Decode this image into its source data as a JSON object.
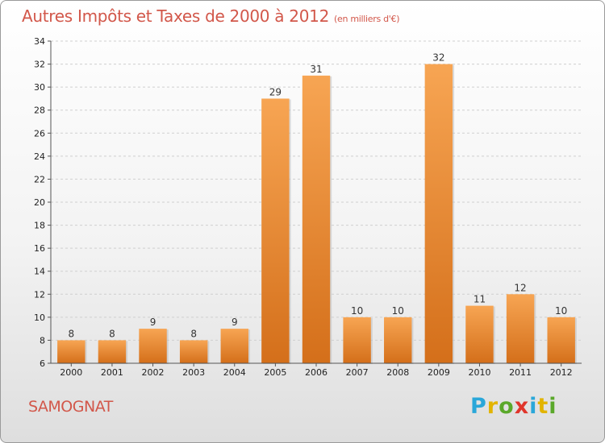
{
  "title": "Autres Impôts et Taxes de 2000 à 2012",
  "unit": "(en milliers d'€)",
  "commune": "SAMOGNAT",
  "logo": {
    "letters": [
      "P",
      "r",
      "o",
      "x",
      "i",
      "t",
      "i"
    ],
    "colors": [
      "#2aa7d9",
      "#e2b400",
      "#5aa82a",
      "#e0352b",
      "#2aa7d9",
      "#e2b400",
      "#5aa82a"
    ]
  },
  "chart_data": {
    "type": "bar",
    "title": "Autres Impôts et Taxes de 2000 à 2012",
    "subtitle": "(en milliers d'€)",
    "categories": [
      "2000",
      "2001",
      "2002",
      "2003",
      "2004",
      "2005",
      "2006",
      "2007",
      "2008",
      "2009",
      "2010",
      "2011",
      "2012"
    ],
    "values": [
      8,
      8,
      9,
      8,
      9,
      29,
      31,
      10,
      10,
      32,
      11,
      12,
      10
    ],
    "ylim": [
      6,
      34
    ],
    "yticks": [
      6,
      8,
      10,
      12,
      14,
      16,
      18,
      20,
      22,
      24,
      26,
      28,
      30,
      32,
      34
    ],
    "grid": true,
    "bar_color": "#f0953a"
  }
}
